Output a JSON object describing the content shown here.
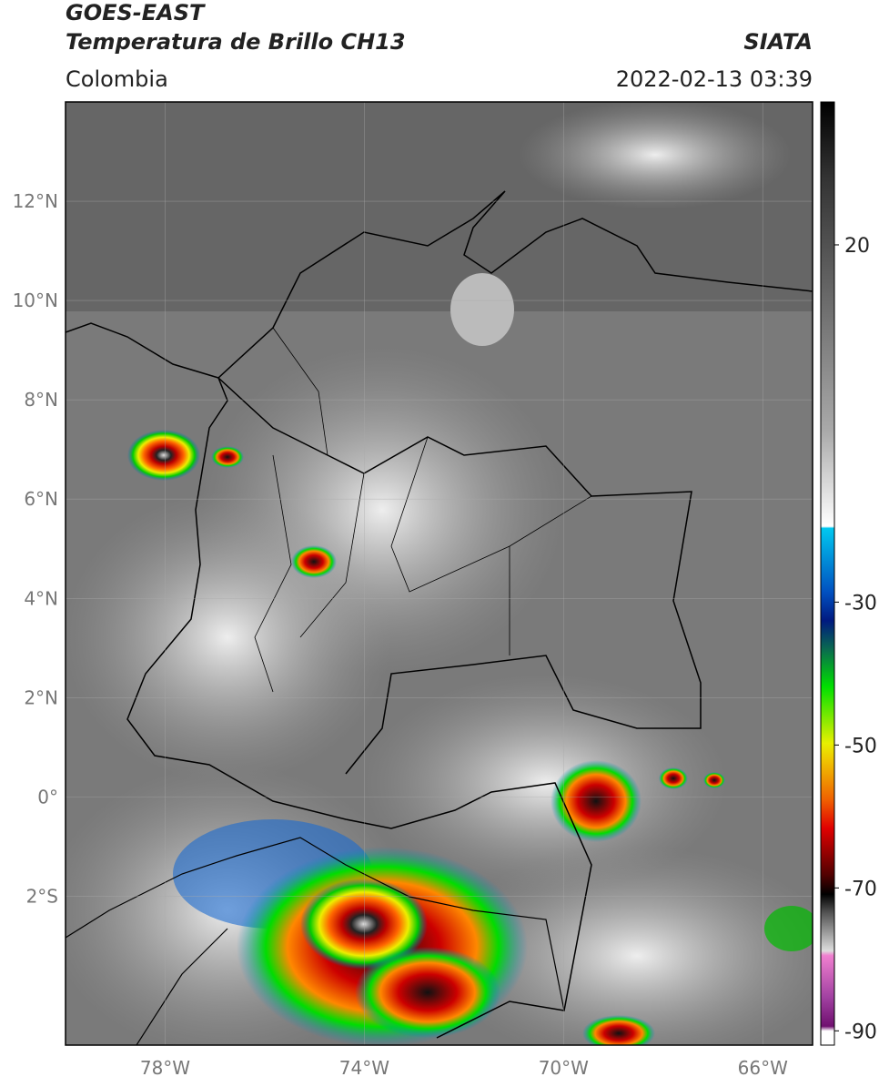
{
  "header": {
    "title": "GOES-EAST",
    "subtitle": "Temperatura de Brillo CH13",
    "source": "SIATA",
    "region": "Colombia",
    "timestamp": "2022-02-13 03:39"
  },
  "map": {
    "latlim": [
      -5,
      14
    ],
    "lonlim": [
      -80,
      -65
    ],
    "lat_ticks": [
      {
        "value": 12,
        "label": "12°N"
      },
      {
        "value": 10,
        "label": "10°N"
      },
      {
        "value": 8,
        "label": "8°N"
      },
      {
        "value": 6,
        "label": "6°N"
      },
      {
        "value": 4,
        "label": "4°N"
      },
      {
        "value": 2,
        "label": "2°N"
      },
      {
        "value": 0,
        "label": "0°"
      },
      {
        "value": -2,
        "label": "2°S"
      }
    ],
    "lon_ticks": [
      {
        "value": -78,
        "label": "78°W"
      },
      {
        "value": -74,
        "label": "74°W"
      },
      {
        "value": -70,
        "label": "70°W"
      },
      {
        "value": -66,
        "label": "66°W"
      }
    ]
  },
  "colorbar": {
    "clim": [
      40,
      -92
    ],
    "ticks": [
      20,
      -30,
      -50,
      -70,
      -90
    ]
  }
}
